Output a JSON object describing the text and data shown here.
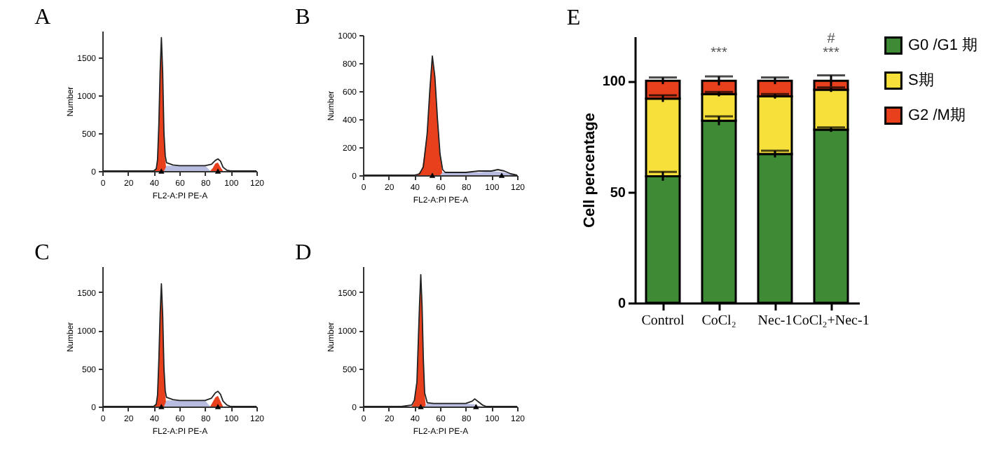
{
  "chart_data": [
    {
      "type": "area",
      "title": "A",
      "xlabel": "FL2-A:PI PE-A",
      "ylabel": "Number",
      "xlim": [
        0,
        120
      ],
      "xticks": [
        0,
        20,
        40,
        60,
        80,
        100,
        120
      ],
      "ylim": [
        0,
        1850
      ],
      "yticks": [
        0,
        500,
        1000,
        1500
      ],
      "series": [
        {
          "type": "area",
          "color": "#e8401c",
          "x": [
            40,
            42,
            43,
            44,
            45,
            46,
            47,
            48,
            49,
            50
          ],
          "values": [
            0,
            30,
            150,
            600,
            1300,
            1720,
            1300,
            500,
            150,
            0
          ]
        },
        {
          "type": "area",
          "color": "#b8bce0",
          "x": [
            48,
            50,
            60,
            70,
            80,
            82,
            84
          ],
          "values": [
            0,
            70,
            70,
            70,
            70,
            40,
            0
          ]
        },
        {
          "type": "area",
          "color": "#e8401c",
          "x": [
            84,
            86,
            88,
            90,
            92,
            94
          ],
          "values": [
            0,
            40,
            100,
            110,
            50,
            0
          ]
        },
        {
          "type": "line",
          "color": "#222222",
          "x": [
            0,
            40,
            42,
            43,
            44,
            45,
            46,
            47,
            48,
            49,
            50,
            55,
            60,
            70,
            80,
            85,
            88,
            90,
            92,
            94,
            97,
            100,
            120
          ],
          "values": [
            0,
            0,
            30,
            150,
            600,
            1300,
            1760,
            1300,
            500,
            200,
            110,
            80,
            70,
            70,
            70,
            90,
            140,
            160,
            130,
            50,
            10,
            0,
            0
          ]
        },
        {
          "type": "scatter",
          "marker": "triangle",
          "color": "#000000",
          "x": [
            46,
            90
          ],
          "values": [
            0,
            0
          ]
        }
      ]
    },
    {
      "type": "area",
      "title": "B",
      "xlabel": "FL2-A:PI PE-A",
      "ylabel": "Number",
      "xlim": [
        0,
        120
      ],
      "xticks": [
        0,
        20,
        40,
        60,
        80,
        100,
        120
      ],
      "ylim": [
        0,
        1000
      ],
      "yticks": [
        0,
        200,
        400,
        600,
        800,
        1000
      ],
      "series": [
        {
          "type": "area",
          "color": "#e8401c",
          "x": [
            42,
            46,
            50,
            52,
            54,
            56,
            58,
            60,
            62
          ],
          "values": [
            0,
            40,
            300,
            600,
            830,
            700,
            400,
            150,
            0
          ]
        },
        {
          "type": "area",
          "color": "#b8bce0",
          "x": [
            60,
            62,
            70,
            90,
            100,
            110,
            118
          ],
          "values": [
            0,
            20,
            20,
            20,
            30,
            20,
            0
          ]
        },
        {
          "type": "line",
          "color": "#222222",
          "x": [
            0,
            40,
            44,
            47,
            50,
            52,
            54,
            56,
            58,
            60,
            62,
            64,
            70,
            80,
            90,
            100,
            105,
            110,
            115,
            120
          ],
          "values": [
            0,
            0,
            10,
            60,
            300,
            600,
            850,
            700,
            400,
            150,
            40,
            20,
            20,
            20,
            30,
            30,
            40,
            30,
            10,
            0
          ]
        },
        {
          "type": "scatter",
          "marker": "triangle",
          "color": "#000000",
          "x": [
            54,
            108
          ],
          "values": [
            0,
            0
          ]
        }
      ]
    },
    {
      "type": "area",
      "title": "C",
      "xlabel": "FL2-A:PI PE-A",
      "ylabel": "Number",
      "xlim": [
        0,
        120
      ],
      "xticks": [
        0,
        20,
        40,
        60,
        80,
        100,
        120
      ],
      "ylim": [
        0,
        1840
      ],
      "yticks": [
        0,
        500,
        1000,
        1500
      ],
      "series": [
        {
          "type": "area",
          "color": "#e8401c",
          "x": [
            40,
            42,
            43,
            44,
            45,
            46,
            47,
            48,
            49,
            50
          ],
          "values": [
            0,
            30,
            150,
            600,
            1200,
            1580,
            1200,
            500,
            150,
            0
          ]
        },
        {
          "type": "area",
          "color": "#b8bce0",
          "x": [
            48,
            50,
            60,
            70,
            80,
            82,
            84
          ],
          "values": [
            0,
            80,
            80,
            80,
            80,
            40,
            0
          ]
        },
        {
          "type": "area",
          "color": "#e8401c",
          "x": [
            84,
            86,
            88,
            90,
            92,
            94
          ],
          "values": [
            0,
            60,
            120,
            140,
            70,
            0
          ]
        },
        {
          "type": "line",
          "color": "#222222",
          "x": [
            0,
            40,
            42,
            43,
            44,
            45,
            46,
            47,
            48,
            49,
            50,
            55,
            60,
            70,
            80,
            85,
            88,
            90,
            92,
            94,
            97,
            100,
            120
          ],
          "values": [
            0,
            0,
            30,
            150,
            600,
            1200,
            1610,
            1200,
            500,
            200,
            120,
            90,
            80,
            80,
            80,
            110,
            180,
            200,
            160,
            70,
            20,
            0,
            0
          ]
        },
        {
          "type": "scatter",
          "marker": "triangle",
          "color": "#000000",
          "x": [
            46,
            90
          ],
          "values": [
            0,
            0
          ]
        }
      ]
    },
    {
      "type": "area",
      "title": "D",
      "xlabel": "FL2-A:PI PE-A",
      "ylabel": "Number",
      "xlim": [
        0,
        120
      ],
      "xticks": [
        0,
        20,
        40,
        60,
        80,
        100,
        120
      ],
      "ylim": [
        0,
        1840
      ],
      "yticks": [
        0,
        500,
        1000,
        1500
      ],
      "series": [
        {
          "type": "area",
          "color": "#e8401c",
          "x": [
            38,
            40,
            42,
            43,
            44,
            45,
            46,
            47,
            48,
            49
          ],
          "values": [
            0,
            60,
            300,
            800,
            1300,
            1700,
            1300,
            600,
            150,
            0
          ]
        },
        {
          "type": "area",
          "color": "#b8bce0",
          "x": [
            48,
            50,
            60,
            70,
            80,
            86,
            90,
            92
          ],
          "values": [
            0,
            40,
            40,
            40,
            40,
            30,
            10,
            0
          ]
        },
        {
          "type": "line",
          "color": "#222222",
          "x": [
            0,
            30,
            38,
            40,
            42,
            43,
            44,
            45,
            46,
            47,
            48,
            50,
            55,
            60,
            70,
            80,
            85,
            87,
            90,
            93,
            96,
            120
          ],
          "values": [
            0,
            0,
            20,
            80,
            320,
            820,
            1320,
            1730,
            1320,
            620,
            180,
            50,
            40,
            40,
            40,
            40,
            70,
            100,
            60,
            20,
            0,
            0
          ]
        },
        {
          "type": "scatter",
          "marker": "triangle",
          "color": "#000000",
          "x": [
            45,
            88
          ],
          "values": [
            0,
            0
          ]
        }
      ]
    },
    {
      "type": "bar",
      "title": "E",
      "ylabel": "Cell percentage",
      "stacked": true,
      "legend": "top right",
      "categories": [
        "Control",
        "CoCl₂",
        "Nec-1",
        "CoCl₂+Nec-1"
      ],
      "ylim": [
        0,
        120
      ],
      "yticks": [
        0,
        50,
        100
      ],
      "series": [
        {
          "name": "G0 /G1 期",
          "color": "#3f8a34",
          "values": [
            57,
            82,
            67,
            78
          ],
          "errors": [
            2,
            2,
            1.5,
            1
          ]
        },
        {
          "name": "S期",
          "color": "#f7e03a",
          "values": [
            35,
            12,
            26,
            18
          ],
          "errors": [
            1.5,
            1,
            1,
            1
          ]
        },
        {
          "name": "G2 /M期",
          "color": "#e8401c",
          "values": [
            8,
            6,
            7,
            4
          ],
          "errors": [
            1.5,
            2,
            1.5,
            2.5
          ]
        }
      ],
      "annotations": [
        {
          "text": "***",
          "x": "CoCl₂",
          "y": 100
        },
        {
          "text": "***",
          "x": "CoCl₂+Nec-1",
          "y": 100
        },
        {
          "text": "#",
          "x": "CoCl₂+Nec-1",
          "y": 100
        }
      ]
    }
  ]
}
